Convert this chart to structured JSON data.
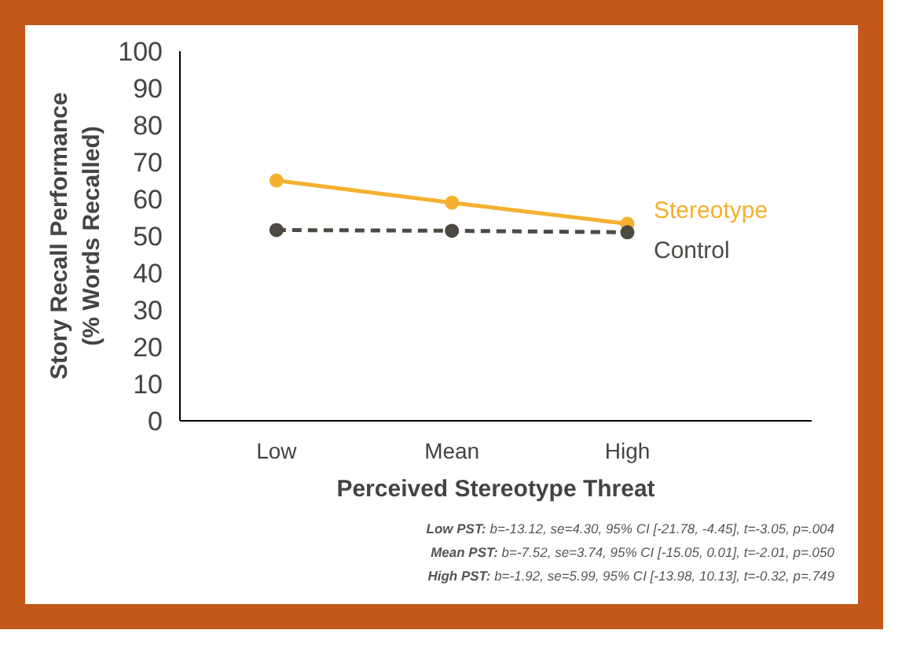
{
  "chart_data": {
    "type": "line",
    "xlabel": "Perceived Stereotype Threat",
    "ylabel": "Story Recall Performance\n(% Words Recalled)",
    "categories": [
      "Low",
      "Mean",
      "High"
    ],
    "series": [
      {
        "name": "Stereotype",
        "color": "#f5b02e",
        "values": [
          65,
          59,
          53.3
        ],
        "line_style": "solid"
      },
      {
        "name": "Control",
        "color": "#4d4a44",
        "values": [
          51.6,
          51.4,
          51
        ],
        "line_style": "dashed"
      }
    ],
    "ylim": [
      0,
      100
    ],
    "yticks": [
      0,
      10,
      20,
      30,
      40,
      50,
      60,
      70,
      80,
      90,
      100
    ],
    "grid": false,
    "legend": false,
    "marker": "circle",
    "annotations": [
      "Low PST: b=-13.12, se=4.30, 95% CI [-21.78, -4.45], t=-3.05, p=.004",
      "Mean PST: b=-7.52, se=3.74, 95% CI [-15.05, 0.01], t=-2.01, p=.050",
      "High PST: b=-1.92, se=5.99, 95% CI [-13.98, 10.13], t=-0.32, p=.749"
    ]
  }
}
